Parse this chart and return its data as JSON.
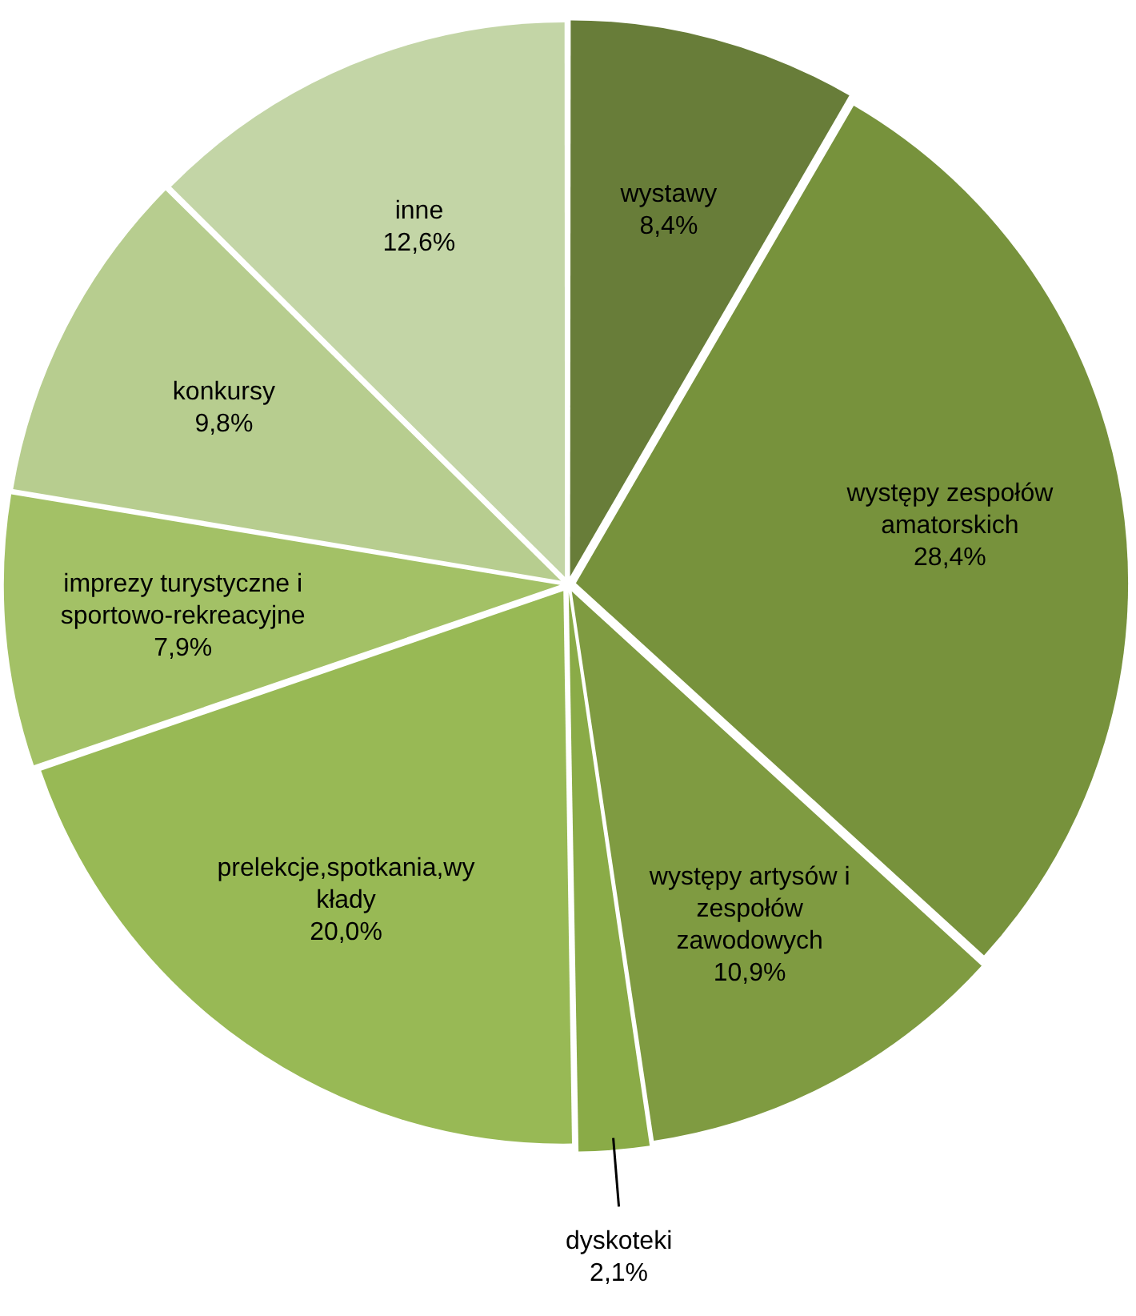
{
  "chart_data": {
    "type": "pie",
    "categories": [
      "wystawy",
      "występy zespołów amatorskich",
      "występy artysów i zespołów zawodowych",
      "dyskoteki",
      "prelekcje,spotkania,wy kłady",
      "imprezy turystyczne i sportowo-rekreacyjne",
      "konkursy",
      "inne"
    ],
    "values": [
      8.4,
      28.4,
      10.9,
      2.1,
      20.0,
      7.9,
      9.8,
      12.6
    ],
    "value_labels": [
      "8,4%",
      "28,4%",
      "10,9%",
      "2,1%",
      "20,0%",
      "7,9%",
      "9,8%",
      "12,6%"
    ],
    "colors": [
      "#687d39",
      "#77923c",
      "#7f9b41",
      "#8aab47",
      "#98b955",
      "#a3c166",
      "#b7cd8f",
      "#c3d5a6"
    ],
    "legend": false
  }
}
